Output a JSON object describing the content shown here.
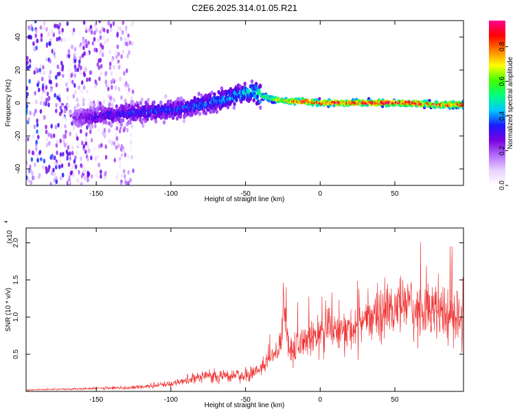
{
  "title": "C2E6.2025.314.01.05.R21",
  "colors": {
    "snr_line": "#ee3333",
    "background": "#ffffff",
    "colormap": [
      "#ffffff",
      "#e9d2ff",
      "#b46bff",
      "#7a00e0",
      "#1a1aff",
      "#00c8ff",
      "#00ff80",
      "#40ff00",
      "#ffff00",
      "#ff8000",
      "#ff0000",
      "#ff0090"
    ]
  },
  "chart_data": [
    {
      "type": "heatmap",
      "name": "spectrogram",
      "xlabel": "Height of straight line (km)",
      "ylabel": "Frequency (Hz)",
      "xlim": [
        -197,
        96
      ],
      "ylim": [
        -50,
        50
      ],
      "xticks": [
        -150,
        -100,
        -50,
        0,
        50
      ],
      "xtick_labels": [
        "-150",
        "-100",
        "-50",
        "0",
        "50"
      ],
      "yticks": [
        -40,
        -20,
        0,
        20,
        40
      ],
      "ytick_labels": [
        "-40",
        "-20",
        "0",
        "20",
        "40"
      ],
      "colorbar": {
        "label": "Normalized spectral amplitude",
        "range": [
          0,
          0.95
        ],
        "ticks": [
          0.0,
          0.2,
          0.4,
          0.6,
          0.8
        ],
        "tick_labels": [
          "0.0",
          "0.2",
          "0.4",
          "0.6",
          "0.8"
        ]
      },
      "ridge": {
        "x": [
          -165,
          -150,
          -130,
          -110,
          -90,
          -70,
          -55,
          -45,
          -38,
          -30,
          -20,
          -10,
          0,
          20,
          40,
          60,
          80,
          96
        ],
        "freq": [
          -9,
          -8,
          -6,
          -5,
          -3,
          1,
          5,
          7,
          4,
          2,
          1,
          1,
          0,
          0,
          0,
          0,
          -1,
          -1
        ],
        "amplitude": [
          0.25,
          0.32,
          0.35,
          0.38,
          0.38,
          0.42,
          0.45,
          0.5,
          0.62,
          0.72,
          0.85,
          0.9,
          0.92,
          0.93,
          0.93,
          0.93,
          0.92,
          0.9
        ]
      },
      "noise_region": {
        "x_from": -197,
        "x_to": -125,
        "amplitude_max": 0.2
      }
    },
    {
      "type": "line",
      "name": "snr",
      "xlabel": "Height of straight line (km)",
      "ylabel": "SNR (10 * v/v)",
      "ylabel_multiplier": "(x10",
      "ylabel_exponent": "4",
      "xlim": [
        -197,
        96
      ],
      "ylim": [
        0,
        2.2
      ],
      "xticks": [
        -150,
        -100,
        -50,
        0,
        50
      ],
      "xtick_labels": [
        "-150",
        "-100",
        "-50",
        "0",
        "50"
      ],
      "yticks": [
        0.5,
        1.0,
        1.5,
        2.0
      ],
      "ytick_labels": [
        "0.5",
        "1.0",
        "1.5",
        "2.0"
      ],
      "series": [
        {
          "x": [
            -197,
            -170,
            -150,
            -130,
            -120,
            -110,
            -100,
            -90,
            -80,
            -70,
            -60,
            -50,
            -45,
            -40,
            -35,
            -30,
            -26,
            -25,
            -22,
            -20,
            -15,
            -10,
            -5,
            0,
            5,
            10,
            15,
            20,
            25,
            30,
            35,
            40,
            45,
            50,
            55,
            60,
            65,
            70,
            75,
            80,
            85,
            90,
            96
          ],
          "y": [
            0.02,
            0.03,
            0.04,
            0.05,
            0.06,
            0.08,
            0.1,
            0.15,
            0.2,
            0.22,
            0.2,
            0.2,
            0.25,
            0.3,
            0.45,
            0.55,
            0.7,
            1.35,
            0.65,
            0.6,
            0.62,
            0.7,
            0.75,
            0.8,
            0.78,
            0.82,
            0.8,
            0.85,
            0.9,
            0.95,
            1.0,
            1.05,
            1.1,
            1.1,
            1.15,
            1.12,
            1.1,
            1.15,
            1.1,
            1.05,
            1.05,
            1.0,
            1.0
          ]
        }
      ]
    }
  ]
}
